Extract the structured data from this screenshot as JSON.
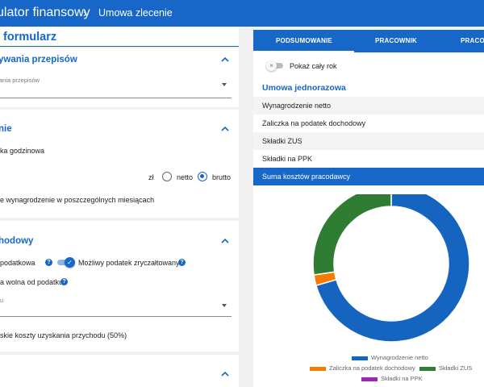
{
  "header": {
    "title": "ulator finansowy",
    "separator": "›",
    "breadcrumb": "Umowa zlecenie"
  },
  "form": {
    "title": "j formularz",
    "section1": {
      "title": "ywania przepisów",
      "field_label": "ania przepisów"
    },
    "section2": {
      "title": "nie",
      "rate_label": "ka godzinowa",
      "currency": "zł",
      "option_net": "netto",
      "option_gross": "brutto",
      "selected": "brutto",
      "monthly_label": "e wynagrodzenie w poszczególnych miesiącach"
    },
    "section3": {
      "title": "hodowy",
      "tax_label": "podatkowa",
      "flat_tax_label": "Możliwy podatek zryczałtowany",
      "flat_tax_on": true,
      "exempt_label": "a wolna od podatku",
      "select_label": "u",
      "costs_label": "skie koszty uzyskania przychodu (50%)"
    }
  },
  "summary": {
    "tabs": [
      {
        "label": "PODSUMOWANIE"
      },
      {
        "label": "PRACOWNIK"
      },
      {
        "label": "PRACO"
      }
    ],
    "active_tab": "PODSUMOWANIE",
    "show_full_year_label": "Pokaż cały rok",
    "show_full_year": false,
    "section_title": "Umowa jednorazowa",
    "rows": [
      {
        "label": "Wynagrodzenie netto"
      },
      {
        "label": "Zaliczka na podatek dochodowy"
      },
      {
        "label": "Składki ZUS"
      },
      {
        "label": "Składki na PPK"
      },
      {
        "label": "Suma kosztów pracodawcy"
      }
    ]
  },
  "icons": {
    "chevron": "chevron-up-icon",
    "help": "help-circle-icon",
    "dropdown": "caret-down-icon"
  },
  "colors": {
    "primary": "#1667c8",
    "net_salary": "#1565c0",
    "tax_advance": "#f57c00",
    "zus": "#2e7d32",
    "ppk": "#9c27b0"
  },
  "chart_data": {
    "type": "pie",
    "variant": "donut",
    "series": [
      {
        "name": "Wynagrodzenie netto",
        "value": 70.5,
        "color": "#1565c0"
      },
      {
        "name": "Zaliczka na podatek dochodowy",
        "value": 2.2,
        "color": "#f57c00"
      },
      {
        "name": "Składki ZUS",
        "value": 27.3,
        "color": "#2e7d32"
      },
      {
        "name": "Składki na PPK",
        "value": 0,
        "color": "#9c27b0"
      }
    ],
    "legend_position": "bottom"
  }
}
